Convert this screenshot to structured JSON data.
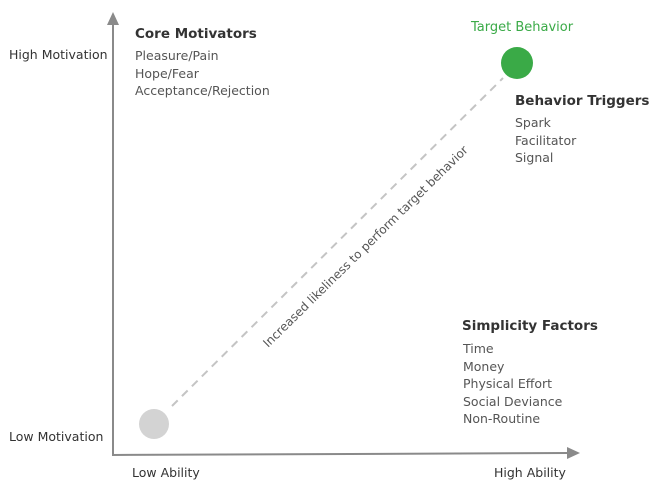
{
  "axes": {
    "y_high": "High Motivation",
    "y_low": "Low Motivation",
    "x_low": "Low Ability",
    "x_high": "High Ability"
  },
  "core_motivators": {
    "title": "Core Motivators",
    "items": [
      "Pleasure/Pain",
      "Hope/Fear",
      "Acceptance/Rejection"
    ]
  },
  "target": {
    "label": "Target Behavior",
    "color": "#3aaa47"
  },
  "start_point_color": "#d3d3d3",
  "behavior_triggers": {
    "title": "Behavior Triggers",
    "items": [
      "Spark",
      "Facilitator",
      "Signal"
    ]
  },
  "simplicity_factors": {
    "title": "Simplicity Factors",
    "items": [
      "Time",
      "Money",
      "Physical Effort",
      "Social Deviance",
      "Non-Routine"
    ]
  },
  "diagonal_label": "Increased likeliness to perform target behavior"
}
